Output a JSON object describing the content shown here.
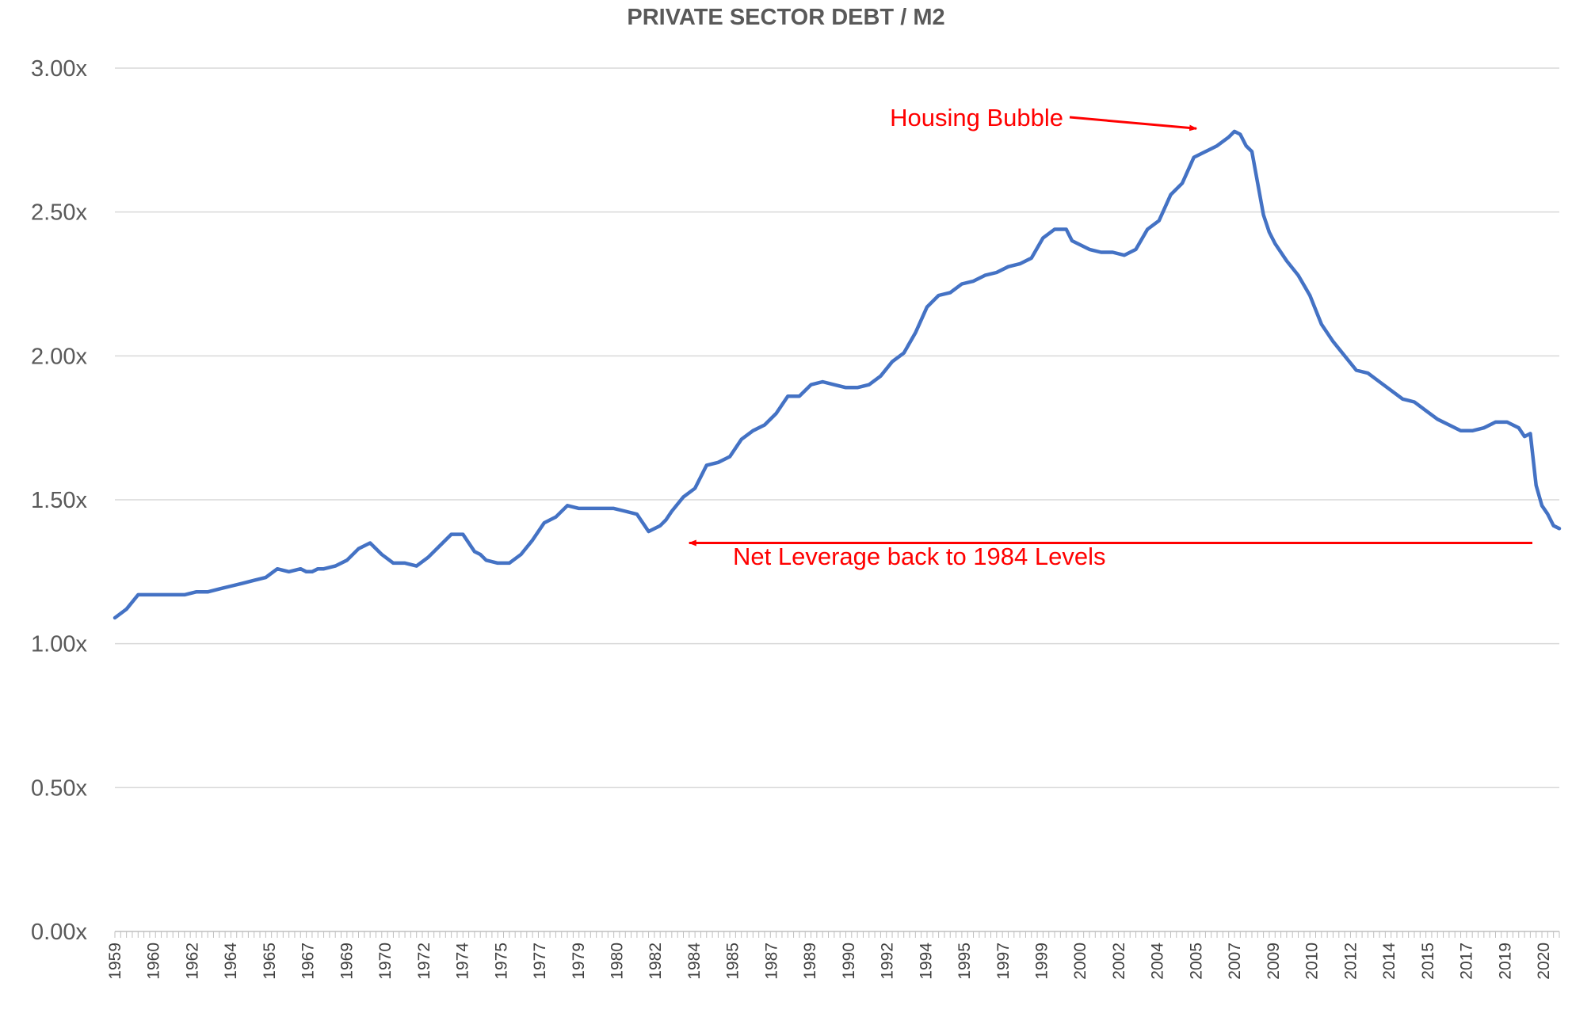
{
  "chart_data": {
    "type": "line",
    "title": "PRIVATE SECTOR DEBT / M2",
    "xlabel": "",
    "ylabel": "",
    "ylim": [
      0,
      3
    ],
    "xlim": [
      1959.0,
      2021.25
    ],
    "y_ticks": [
      "0.00x",
      "0.50x",
      "1.00x",
      "1.50x",
      "2.00x",
      "2.50x",
      "3.00x"
    ],
    "x_ticks": [
      "1959",
      "1960",
      "1962",
      "1964",
      "1965",
      "1967",
      "1969",
      "1970",
      "1972",
      "1974",
      "1975",
      "1977",
      "1979",
      "1980",
      "1982",
      "1984",
      "1985",
      "1987",
      "1989",
      "1990",
      "1992",
      "1994",
      "1995",
      "1997",
      "1999",
      "2000",
      "2002",
      "2004",
      "2005",
      "2007",
      "2009",
      "2010",
      "2012",
      "2014",
      "2015",
      "2017",
      "2019",
      "2020"
    ],
    "grid": true,
    "series_color": "#4472c4",
    "annotation_color": "#ff0000",
    "series": [
      {
        "x": [
          1959.0,
          1959.5,
          1960.0,
          1960.5,
          1961.0,
          1961.5,
          1962.0,
          1962.5,
          1963.0,
          1963.5,
          1964.0,
          1964.5,
          1965.0,
          1965.5,
          1966.0,
          1966.5,
          1967.0,
          1967.25,
          1967.5,
          1967.75,
          1968.0,
          1968.5,
          1969.0,
          1969.5,
          1970.0,
          1970.5,
          1971.0,
          1971.5,
          1972.0,
          1972.5,
          1973.0,
          1973.5,
          1974.0,
          1974.5,
          1974.75,
          1975.0,
          1975.5,
          1976.0,
          1976.5,
          1977.0,
          1977.5,
          1978.0,
          1978.5,
          1979.0,
          1979.5,
          1980.0,
          1980.5,
          1981.0,
          1981.5,
          1982.0,
          1982.5,
          1982.75,
          1983.0,
          1983.5,
          1984.0,
          1984.5,
          1985.0,
          1985.5,
          1986.0,
          1986.5,
          1987.0,
          1987.5,
          1988.0,
          1988.5,
          1989.0,
          1989.5,
          1990.0,
          1990.5,
          1991.0,
          1991.5,
          1992.0,
          1992.5,
          1993.0,
          1993.5,
          1994.0,
          1994.5,
          1995.0,
          1995.5,
          1996.0,
          1996.5,
          1997.0,
          1997.5,
          1998.0,
          1998.5,
          1999.0,
          1999.5,
          2000.0,
          2000.25,
          2000.5,
          2001.0,
          2001.5,
          2002.0,
          2002.5,
          2003.0,
          2003.5,
          2004.0,
          2004.5,
          2005.0,
          2005.5,
          2006.0,
          2006.5,
          2007.0,
          2007.25,
          2007.5,
          2007.75,
          2008.0,
          2008.25,
          2008.5,
          2008.75,
          2009.0,
          2009.5,
          2010.0,
          2010.5,
          2011.0,
          2011.5,
          2012.0,
          2012.5,
          2013.0,
          2013.5,
          2014.0,
          2014.5,
          2015.0,
          2015.5,
          2016.0,
          2016.5,
          2017.0,
          2017.5,
          2018.0,
          2018.5,
          2019.0,
          2019.5,
          2019.75,
          2020.0,
          2020.25,
          2020.5,
          2020.75,
          2021.0,
          2021.25
        ],
        "values": [
          1.09,
          1.12,
          1.17,
          1.17,
          1.17,
          1.17,
          1.17,
          1.18,
          1.18,
          1.19,
          1.2,
          1.21,
          1.22,
          1.23,
          1.26,
          1.25,
          1.26,
          1.25,
          1.25,
          1.26,
          1.26,
          1.27,
          1.29,
          1.33,
          1.35,
          1.31,
          1.28,
          1.28,
          1.27,
          1.3,
          1.34,
          1.38,
          1.38,
          1.32,
          1.31,
          1.29,
          1.28,
          1.28,
          1.31,
          1.36,
          1.42,
          1.44,
          1.48,
          1.47,
          1.47,
          1.47,
          1.47,
          1.46,
          1.45,
          1.39,
          1.41,
          1.43,
          1.46,
          1.51,
          1.54,
          1.62,
          1.63,
          1.65,
          1.71,
          1.74,
          1.76,
          1.8,
          1.86,
          1.86,
          1.9,
          1.91,
          1.9,
          1.89,
          1.89,
          1.9,
          1.93,
          1.98,
          2.01,
          2.08,
          2.17,
          2.21,
          2.22,
          2.25,
          2.26,
          2.28,
          2.29,
          2.31,
          2.32,
          2.34,
          2.41,
          2.44,
          2.44,
          2.4,
          2.39,
          2.37,
          2.36,
          2.36,
          2.35,
          2.37,
          2.44,
          2.47,
          2.56,
          2.6,
          2.69,
          2.71,
          2.73,
          2.76,
          2.78,
          2.77,
          2.73,
          2.71,
          2.6,
          2.49,
          2.43,
          2.39,
          2.33,
          2.28,
          2.21,
          2.11,
          2.05,
          2.0,
          1.95,
          1.94,
          1.91,
          1.88,
          1.85,
          1.84,
          1.81,
          1.78,
          1.76,
          1.74,
          1.74,
          1.75,
          1.77,
          1.77,
          1.75,
          1.72,
          1.73,
          1.55,
          1.48,
          1.45,
          1.41,
          1.4
        ]
      }
    ],
    "annotations": [
      {
        "text": "Housing Bubble",
        "x": 2005.75,
        "y": 2.79
      },
      {
        "text": "Net Leverage back to 1984 Levels",
        "x": 1983.75,
        "y": 1.35
      }
    ]
  }
}
